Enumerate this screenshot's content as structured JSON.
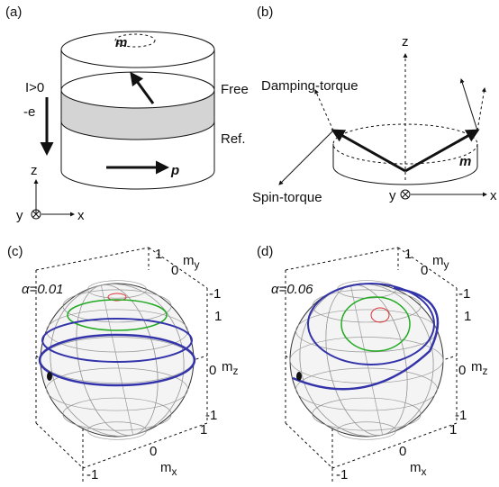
{
  "panel_a": {
    "label": "(a)",
    "moment": "m",
    "current": "I>0",
    "electron": "-e",
    "free_layer": "Free",
    "ref_layer": "Ref.",
    "polarization": "p",
    "axis_z": "z",
    "axis_y": "y",
    "axis_x": "x"
  },
  "panel_b": {
    "label": "(b)",
    "axis_z": "z",
    "damping": "Damping-torque",
    "spin": "Spin-torque",
    "moment": "m",
    "axis_y": "y",
    "axis_x": "x"
  },
  "spheres": [
    {
      "label": "(c)",
      "alpha": "α=0.01",
      "my_label": {
        "base": "m",
        "sub": "y"
      },
      "mz_label": {
        "base": "m",
        "sub": "z"
      },
      "mx_label": {
        "base": "m",
        "sub": "x"
      },
      "my_ticks": [
        1,
        0,
        -1
      ],
      "mz_ticks": [
        1,
        0,
        -1
      ],
      "mx_ticks": [
        1,
        0,
        -1
      ]
    },
    {
      "label": "(d)",
      "alpha": "α=0.06",
      "my_label": {
        "base": "m",
        "sub": "y"
      },
      "mz_label": {
        "base": "m",
        "sub": "z"
      },
      "mx_label": {
        "base": "m",
        "sub": "x"
      },
      "my_ticks": [
        1,
        0,
        -1
      ],
      "mz_ticks": [
        1,
        0,
        -1
      ],
      "mx_ticks": [
        1,
        0,
        -1
      ]
    }
  ]
}
